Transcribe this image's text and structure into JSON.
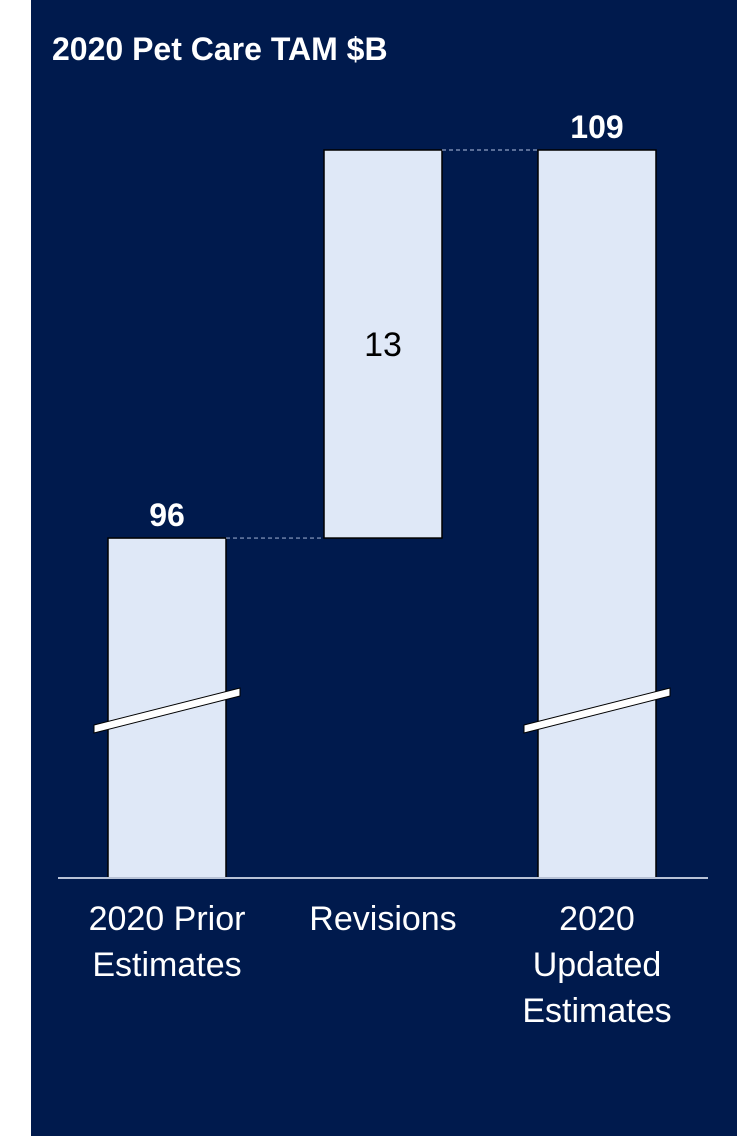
{
  "colors": {
    "background": "#001a4d",
    "bar_fill": "#dfe8f7",
    "bar_stroke": "#000000",
    "text": "#ffffff",
    "bar_text": "#000000",
    "axis": "#b8c2d6",
    "connector": "#8fa0c4",
    "break_mark": "#ffffff"
  },
  "chart_data": {
    "type": "bar",
    "subtype": "waterfall",
    "title": "2020 Pet Care TAM $B",
    "categories": [
      [
        "2020 Prior",
        "Estimates"
      ],
      [
        "Revisions"
      ],
      [
        "2020",
        "Updated",
        "Estimates"
      ]
    ],
    "values": [
      96,
      13,
      109
    ],
    "value_labels": [
      "96",
      "13",
      "109"
    ],
    "bar_kinds": [
      "total",
      "delta",
      "total"
    ],
    "axis_break": true,
    "grid": false,
    "legend": "none"
  }
}
